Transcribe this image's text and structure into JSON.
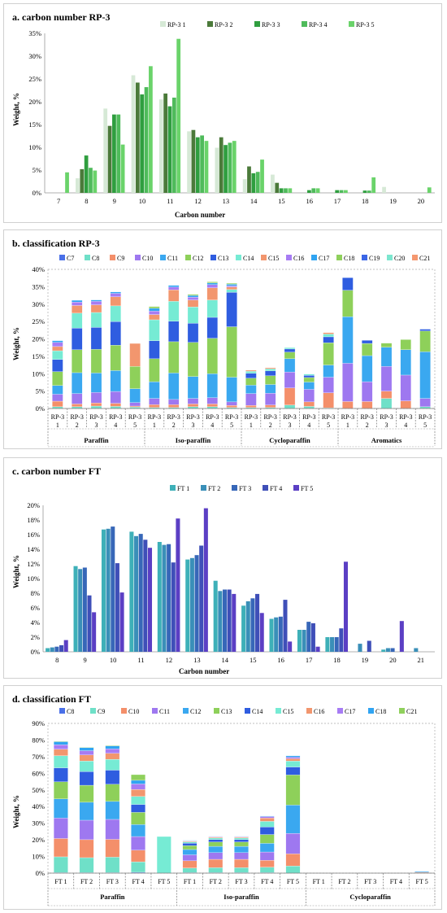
{
  "chart_data": [
    {
      "type": "bar",
      "title": "a. carbon number   RP-3",
      "xlabel": "Carbon number",
      "ylabel": "Weight, %",
      "ylim": [
        0,
        35
      ],
      "yticks": [
        "0%",
        "5%",
        "10%",
        "15%",
        "20%",
        "25%",
        "30%",
        "35%"
      ],
      "categories": [
        "7",
        "8",
        "9",
        "10",
        "11",
        "12",
        "13",
        "14",
        "15",
        "16",
        "17",
        "18",
        "19",
        "20"
      ],
      "colors": [
        "#d6e9d6",
        "#4b7a3a",
        "#2f9e3f",
        "#4fbb5b",
        "#6ad36a"
      ],
      "series": [
        {
          "name": "RP-3 1",
          "values": [
            0,
            3.2,
            18.5,
            25.8,
            20.5,
            13.5,
            9.9,
            3.0,
            4.0,
            0,
            0,
            0,
            1.3,
            0
          ]
        },
        {
          "name": "RP-3 2",
          "values": [
            0,
            5.2,
            14.7,
            24.2,
            21.8,
            13.8,
            12.2,
            5.8,
            2.2,
            0,
            0,
            0,
            0,
            0
          ]
        },
        {
          "name": "RP-3 3",
          "values": [
            0,
            8.2,
            17.2,
            21.6,
            19.0,
            12.2,
            10.5,
            4.3,
            1.0,
            0.6,
            0.6,
            0.5,
            0,
            0
          ]
        },
        {
          "name": "RP-3 4",
          "values": [
            0,
            5.5,
            17.2,
            23.2,
            20.9,
            12.6,
            11.0,
            4.6,
            1.0,
            1.0,
            0.6,
            0.5,
            0,
            0
          ]
        },
        {
          "name": "RP-3 5",
          "values": [
            4.5,
            4.9,
            10.6,
            27.8,
            33.8,
            11.4,
            11.4,
            7.3,
            1.0,
            1.0,
            0.6,
            3.4,
            0,
            1.2
          ]
        }
      ]
    },
    {
      "type": "bar",
      "stacked": true,
      "title": "b. classification RP-3",
      "ylabel": "Weight, %",
      "ylim": [
        0,
        40
      ],
      "yticks": [
        "0%",
        "5%",
        "10%",
        "15%",
        "20%",
        "25%",
        "30%",
        "35%",
        "40%"
      ],
      "groups": [
        "Paraffin",
        "Iso-paraffin",
        "Cycloparaffin",
        "Aromatics"
      ],
      "sample_labels": [
        "RP-3",
        "RP-3",
        "RP-3",
        "RP-3",
        "RP-3"
      ],
      "sample_numbers": [
        "1",
        "2",
        "3",
        "4",
        "5"
      ],
      "legend": [
        "C7",
        "C8",
        "C9",
        "C10",
        "C11",
        "C12",
        "C13",
        "C14",
        "C15",
        "C16",
        "C17",
        "C18",
        "C19",
        "C20",
        "C21"
      ],
      "colors": [
        "#4a70e8",
        "#6fe0c8",
        "#f48f6a",
        "#9e78f0",
        "#3aa8f0",
        "#8ed05a",
        "#2f5de0",
        "#76ebd4",
        "#f2966e",
        "#a77cf4",
        "#30a4f2",
        "#8fd05c",
        "#3b66e6",
        "#7ce6cf",
        "#f59870"
      ],
      "stacks": [
        {
          "group": "Paraffin",
          "sample": 1,
          "values": [
            0,
            0.5,
            1.6,
            2.0,
            2.5,
            4.0,
            3.5,
            2.5,
            1.2,
            1.2,
            0.5,
            0,
            0,
            0,
            0
          ]
        },
        {
          "group": "Paraffin",
          "sample": 2,
          "values": [
            0,
            0.5,
            0.8,
            3.0,
            6.0,
            6.6,
            6.2,
            4.3,
            2.2,
            1.0,
            0.5,
            0,
            0,
            0,
            0
          ]
        },
        {
          "group": "Paraffin",
          "sample": 3,
          "values": [
            0,
            0.7,
            0.9,
            3.0,
            5.6,
            6.8,
            6.3,
            4.3,
            2.2,
            1.0,
            0.4,
            0,
            0,
            0,
            0
          ]
        },
        {
          "group": "Paraffin",
          "sample": 4,
          "values": [
            0,
            0.6,
            0.9,
            3.4,
            6.0,
            7.3,
            6.8,
            4.5,
            2.6,
            1.0,
            0.4,
            0,
            0,
            0,
            0
          ]
        },
        {
          "group": "Paraffin",
          "sample": 5,
          "values": [
            0,
            0.4,
            0.3,
            1.0,
            4.0,
            6.4,
            0,
            0,
            6.6,
            0,
            0,
            0,
            0,
            0,
            0
          ]
        },
        {
          "group": "Iso-paraffin",
          "sample": 1,
          "values": [
            0,
            0.3,
            0.8,
            1.8,
            4.8,
            6.6,
            5.2,
            6.0,
            1.5,
            1.0,
            0.8,
            0.5,
            0,
            0,
            0
          ]
        },
        {
          "group": "Iso-paraffin",
          "sample": 2,
          "values": [
            0,
            0.3,
            0.8,
            1.5,
            7.6,
            9.0,
            5.9,
            5.7,
            3.3,
            0.8,
            0.5,
            0,
            0,
            0,
            0
          ]
        },
        {
          "group": "Iso-paraffin",
          "sample": 3,
          "values": [
            0,
            0.5,
            0.8,
            1.6,
            6.3,
            9.8,
            5.5,
            4.7,
            2.0,
            0.8,
            0.5,
            0.3,
            0,
            0,
            0
          ]
        },
        {
          "group": "Iso-paraffin",
          "sample": 4,
          "values": [
            0,
            0.5,
            0.8,
            1.8,
            6.9,
            10.2,
            6.0,
            5.0,
            3.5,
            0.9,
            0.5,
            0.3,
            0,
            0,
            0
          ]
        },
        {
          "group": "Iso-paraffin",
          "sample": 5,
          "values": [
            0,
            0.3,
            0.6,
            1.0,
            7.1,
            14.5,
            9.9,
            0.8,
            0.7,
            0.4,
            0.4,
            0.3,
            0,
            0,
            0
          ]
        },
        {
          "group": "Cycloparaffin",
          "sample": 1,
          "values": [
            0,
            0.3,
            0.6,
            3.4,
            2.4,
            2.0,
            1.4,
            0.6,
            0.3,
            0,
            0,
            0,
            0,
            0,
            0
          ]
        },
        {
          "group": "Cycloparaffin",
          "sample": 2,
          "values": [
            0,
            0.3,
            0.7,
            3.4,
            2.5,
            2.5,
            1.4,
            0.6,
            0.3,
            0,
            0,
            0,
            0,
            0,
            0
          ]
        },
        {
          "group": "Cycloparaffin",
          "sample": 3,
          "values": [
            0,
            1.0,
            4.9,
            4.6,
            3.8,
            1.9,
            0.9,
            0.4,
            0,
            0,
            0,
            0,
            0,
            0,
            0
          ]
        },
        {
          "group": "Cycloparaffin",
          "sample": 4,
          "values": [
            0,
            0.6,
            1.3,
            3.6,
            2.1,
            1.3,
            0.6,
            0.4,
            0,
            0,
            0,
            0,
            0,
            0,
            0
          ]
        },
        {
          "group": "Cycloparaffin",
          "sample": 5,
          "values": [
            0,
            0.2,
            4.3,
            4.5,
            3.5,
            6.4,
            1.7,
            0.8,
            0.4,
            0,
            0,
            0,
            0,
            0,
            0
          ]
        },
        {
          "group": "Aromatics",
          "sample": 1,
          "values": [
            0,
            0,
            2.0,
            11.0,
            13.4,
            7.6,
            3.6,
            0,
            0,
            0,
            0,
            0,
            0,
            0,
            0
          ]
        },
        {
          "group": "Aromatics",
          "sample": 2,
          "values": [
            0,
            0,
            2.0,
            5.7,
            7.5,
            3.5,
            0.9,
            0,
            0,
            0,
            0,
            0,
            0,
            0,
            0
          ]
        },
        {
          "group": "Aromatics",
          "sample": 3,
          "values": [
            0,
            2.9,
            2.1,
            7.1,
            5.5,
            1.2,
            0,
            0,
            0,
            0,
            0,
            0,
            0,
            0,
            0
          ]
        },
        {
          "group": "Aromatics",
          "sample": 4,
          "values": [
            0,
            0,
            2.2,
            7.4,
            7.3,
            2.9,
            0,
            0,
            0,
            0,
            0,
            0,
            0,
            0,
            0
          ]
        },
        {
          "group": "Aromatics",
          "sample": 5,
          "values": [
            0,
            0.5,
            0,
            2.4,
            13.4,
            6.0,
            0.5,
            0,
            0,
            0,
            0,
            0,
            0,
            0,
            0
          ]
        }
      ]
    },
    {
      "type": "bar",
      "title": "c. carbon number    FT",
      "xlabel": "Carbon number",
      "ylabel": "Weight, %",
      "ylim": [
        0,
        20
      ],
      "yticks": [
        "0%",
        "2%",
        "4%",
        "6%",
        "8%",
        "10%",
        "12%",
        "14%",
        "16%",
        "18%",
        "20%"
      ],
      "categories": [
        "8",
        "9",
        "10",
        "11",
        "12",
        "13",
        "14",
        "15",
        "16",
        "17",
        "18",
        "19",
        "20",
        "21"
      ],
      "colors": [
        "#3eb0b8",
        "#3a8fb8",
        "#3767b8",
        "#3f4fb8",
        "#5b3fc4"
      ],
      "series": [
        {
          "name": "FT 1",
          "values": [
            0.5,
            11.7,
            16.7,
            16.4,
            15.0,
            12.6,
            9.7,
            6.3,
            4.5,
            3.0,
            2.0,
            0,
            0.3,
            0
          ]
        },
        {
          "name": "FT 2",
          "values": [
            0.6,
            11.3,
            16.8,
            15.8,
            14.6,
            12.8,
            8.3,
            6.9,
            4.7,
            3.0,
            2.0,
            1.1,
            0.5,
            0.5
          ]
        },
        {
          "name": "FT 3",
          "values": [
            0.7,
            11.5,
            17.1,
            16.1,
            14.7,
            13.2,
            8.5,
            7.3,
            4.8,
            4.1,
            2.0,
            0,
            0.5,
            0
          ]
        },
        {
          "name": "FT 4",
          "values": [
            0.9,
            7.7,
            12.1,
            15.3,
            12.2,
            14.5,
            8.5,
            7.9,
            7.1,
            3.9,
            3.2,
            1.5,
            0,
            0
          ]
        },
        {
          "name": "FT 5",
          "values": [
            1.6,
            5.4,
            8.1,
            14.2,
            18.2,
            19.6,
            7.9,
            5.3,
            1.4,
            0.7,
            12.3,
            0,
            4.2,
            0
          ]
        }
      ]
    },
    {
      "type": "bar",
      "stacked": true,
      "title": "d. classification FT",
      "ylabel": "Weight, %",
      "ylim": [
        0,
        90
      ],
      "yticks": [
        "0%",
        "10%",
        "20%",
        "30%",
        "40%",
        "50%",
        "60%",
        "70%",
        "80%",
        "90%"
      ],
      "groups": [
        "Paraffin",
        "Iso-paraffin",
        "Cycloparaffin"
      ],
      "sample_labels": [
        "FT 1",
        "FT 2",
        "FT 3",
        "FT 4",
        "FT 5"
      ],
      "legend": [
        "C8",
        "C9",
        "C10",
        "C11",
        "C12",
        "C13",
        "C14",
        "C15",
        "C16",
        "C17",
        "C18",
        "C21"
      ],
      "colors": [
        "#4a70e8",
        "#6fe0c8",
        "#f48f6a",
        "#9e78f0",
        "#3aa8f0",
        "#8ed05a",
        "#2f5de0",
        "#76ebd4",
        "#f2966e",
        "#a77cf4",
        "#30a4f2",
        "#8fd05c"
      ],
      "stacks": [
        {
          "group": "Paraffin",
          "sample": 1,
          "values": [
            0.3,
            9.5,
            11.0,
            12.3,
            11.5,
            10.3,
            8.4,
            7.3,
            3.9,
            2.7,
            1.8,
            0.3
          ]
        },
        {
          "group": "Paraffin",
          "sample": 2,
          "values": [
            0.3,
            9.0,
            10.8,
            11.7,
            10.8,
            10.2,
            8.2,
            6.4,
            3.6,
            2.6,
            1.8,
            0.3
          ]
        },
        {
          "group": "Paraffin",
          "sample": 3,
          "values": [
            0.3,
            9.3,
            10.7,
            12.0,
            10.8,
            10.3,
            8.5,
            6.5,
            3.6,
            2.7,
            1.8,
            0.3
          ]
        },
        {
          "group": "Paraffin",
          "sample": 4,
          "values": [
            0.5,
            6.3,
            7.0,
            8.2,
            7.2,
            7.3,
            4.8,
            4.8,
            4.2,
            3.3,
            2.2,
            3.4
          ]
        },
        {
          "group": "Paraffin",
          "sample": 5,
          "values": [
            0,
            0,
            0,
            0,
            0,
            0,
            0,
            22.0,
            0,
            0,
            0,
            0
          ]
        },
        {
          "group": "Iso-paraffin",
          "sample": 1,
          "values": [
            0.3,
            2.8,
            4.3,
            3.6,
            3.2,
            2.3,
            1.5,
            0.8,
            0.4,
            0.3,
            0.2,
            0
          ]
        },
        {
          "group": "Iso-paraffin",
          "sample": 2,
          "values": [
            0.3,
            3.0,
            5.0,
            4.0,
            3.8,
            2.6,
            1.5,
            1.0,
            0.5,
            0.3,
            0.2,
            0
          ]
        },
        {
          "group": "Iso-paraffin",
          "sample": 3,
          "values": [
            0.3,
            3.0,
            5.0,
            4.0,
            3.8,
            2.6,
            1.5,
            1.0,
            0.5,
            0.3,
            0.2,
            0
          ]
        },
        {
          "group": "Iso-paraffin",
          "sample": 4,
          "values": [
            0.3,
            3.3,
            4.1,
            5.0,
            5.2,
            5.3,
            4.5,
            3.4,
            2.0,
            0.9,
            0.3,
            0
          ]
        },
        {
          "group": "Iso-paraffin",
          "sample": 5,
          "values": [
            0,
            4.3,
            7.3,
            12.3,
            17.0,
            18.1,
            4.8,
            3.6,
            1.4,
            0.9,
            0.8,
            0
          ]
        },
        {
          "group": "Cycloparaffin",
          "sample": 1,
          "values": [
            0,
            0,
            0,
            0,
            0,
            0,
            0,
            0,
            0,
            0,
            0,
            0
          ]
        },
        {
          "group": "Cycloparaffin",
          "sample": 2,
          "values": [
            0,
            0,
            0,
            0,
            0,
            0,
            0,
            0,
            0,
            0,
            0,
            0
          ]
        },
        {
          "group": "Cycloparaffin",
          "sample": 3,
          "values": [
            0,
            0,
            0,
            0,
            0,
            0,
            0,
            0,
            0,
            0,
            0,
            0
          ]
        },
        {
          "group": "Cycloparaffin",
          "sample": 4,
          "values": [
            0,
            0,
            0,
            0,
            0,
            0,
            0,
            0,
            0,
            0,
            0,
            0
          ]
        },
        {
          "group": "Cycloparaffin",
          "sample": 5,
          "values": [
            0,
            0,
            0,
            0,
            0,
            0,
            0,
            0,
            0.5,
            0,
            0.5,
            0
          ]
        }
      ]
    }
  ]
}
